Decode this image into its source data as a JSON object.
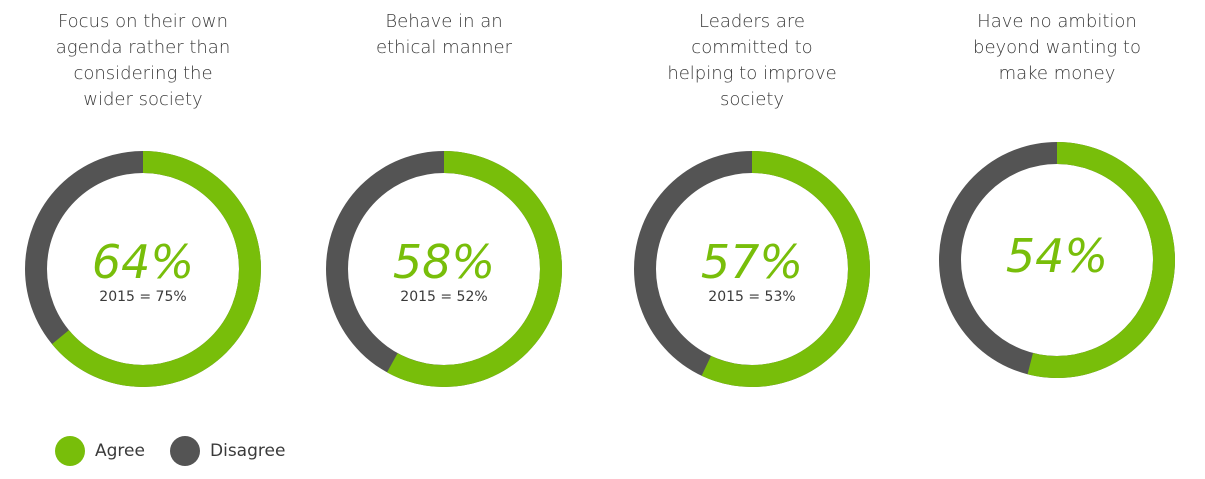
{
  "chart_data": {
    "type": "pie",
    "subtype": "donut",
    "colors": {
      "agree": "#78BE0A",
      "disagree": "#545454"
    },
    "legend": [
      "Agree",
      "Disagree"
    ],
    "legend_position": "bottom-left",
    "charts": [
      {
        "title": "Focus on their own agenda rather than considering the wider society",
        "title_lines": [
          "Focus on their own",
          "agenda rather than",
          "considering the",
          "wider society"
        ],
        "agree": 64,
        "disagree": 36,
        "label": "64%",
        "comparison": "2015 = 75%"
      },
      {
        "title": "Behave in an ethical manner",
        "title_lines": [
          "Behave in an",
          "ethical manner"
        ],
        "agree": 58,
        "disagree": 42,
        "label": "58%",
        "comparison": "2015 = 52%"
      },
      {
        "title": "Leaders are committed to helping to improve society",
        "title_lines": [
          "Leaders are",
          "committed to",
          "helping to improve",
          "society"
        ],
        "agree": 57,
        "disagree": 43,
        "label": "57%",
        "comparison": "2015 = 53%"
      },
      {
        "title": "Have no ambition beyond wanting to make money",
        "title_lines": [
          "Have no ambition",
          "beyond wanting to",
          "make money"
        ],
        "agree": 54,
        "disagree": 46,
        "label": "54%",
        "comparison": null
      }
    ]
  }
}
